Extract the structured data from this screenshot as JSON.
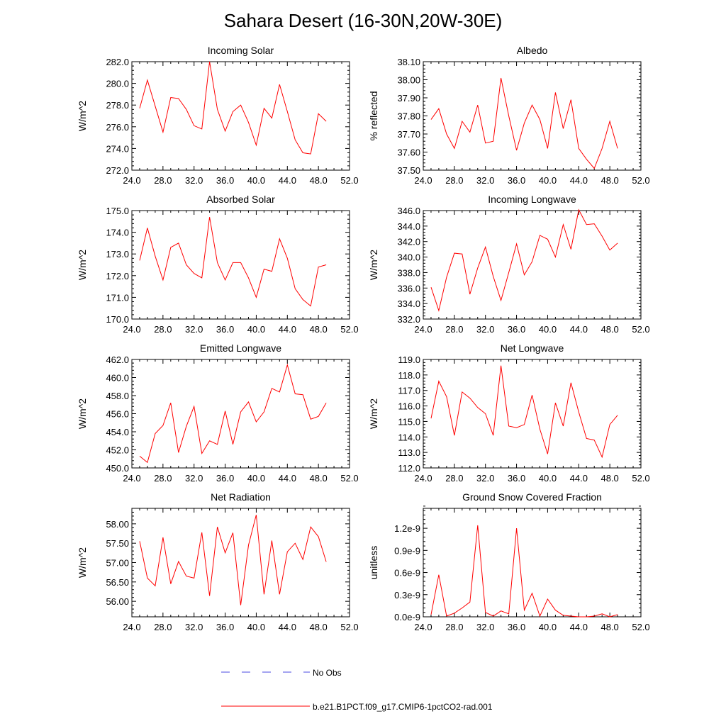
{
  "title": "Sahara Desert (16-30N,20W-30E)",
  "legend": {
    "obs_label": "No Obs",
    "model_label": "b.e21.B1PCT.f09_g17.CMIP6-1pctCO2-rad.001",
    "model_color": "#ff0000",
    "obs_color": "#4a4ae0"
  },
  "chart_data": [
    {
      "type": "line",
      "title": "Incoming Solar",
      "ylabel": "W/m^2",
      "xlim": [
        24,
        52
      ],
      "ylim": [
        272,
        282
      ],
      "xticks": [
        24,
        28,
        32,
        36,
        40,
        44,
        48,
        52
      ],
      "xtick_labels": [
        "24.0",
        "28.0",
        "32.0",
        "36.0",
        "40.0",
        "44.0",
        "48.0",
        "52.0"
      ],
      "yticks": [
        272,
        274,
        276,
        278,
        280,
        282
      ],
      "ytick_labels": [
        "272.0",
        "274.0",
        "276.0",
        "278.0",
        "280.0",
        "282.0"
      ],
      "yminor": 0.4,
      "x": [
        25,
        26,
        27,
        28,
        29,
        30,
        31,
        32,
        33,
        34,
        35,
        36,
        37,
        38,
        39,
        40,
        41,
        42,
        43,
        44,
        45,
        46,
        47,
        48,
        49
      ],
      "series": [
        {
          "name": "b.e21.B1PCT.f09_g17.CMIP6-1pctCO2-rad.001",
          "values": [
            277.7,
            280.3,
            277.9,
            275.5,
            278.7,
            278.6,
            277.6,
            276.1,
            275.8,
            282.0,
            277.6,
            275.6,
            277.4,
            278.0,
            276.4,
            274.3,
            277.7,
            276.8,
            279.9,
            277.4,
            274.8,
            273.6,
            273.5,
            277.2,
            276.5
          ]
        }
      ]
    },
    {
      "type": "line",
      "title": "Albedo",
      "ylabel": "% reflected",
      "xlim": [
        24,
        52
      ],
      "ylim": [
        37.5,
        38.1
      ],
      "xticks": [
        24,
        28,
        32,
        36,
        40,
        44,
        48,
        52
      ],
      "xtick_labels": [
        "24.0",
        "28.0",
        "32.0",
        "36.0",
        "40.0",
        "44.0",
        "48.0",
        "52.0"
      ],
      "yticks": [
        37.5,
        37.6,
        37.7,
        37.8,
        37.9,
        38.0,
        38.1
      ],
      "ytick_labels": [
        "37.50",
        "37.60",
        "37.70",
        "37.80",
        "37.90",
        "38.00",
        "38.10"
      ],
      "yminor": 0.02,
      "x": [
        25,
        26,
        27,
        28,
        29,
        30,
        31,
        32,
        33,
        34,
        35,
        36,
        37,
        38,
        39,
        40,
        41,
        42,
        43,
        44,
        45,
        46,
        47,
        48,
        49
      ],
      "series": [
        {
          "name": "b.e21.B1PCT.f09_g17.CMIP6-1pctCO2-rad.001",
          "values": [
            37.78,
            37.84,
            37.7,
            37.62,
            37.77,
            37.71,
            37.86,
            37.65,
            37.66,
            38.01,
            37.8,
            37.61,
            37.76,
            37.86,
            37.78,
            37.62,
            37.93,
            37.73,
            37.89,
            37.62,
            37.56,
            37.51,
            37.62,
            37.77,
            37.62
          ]
        }
      ]
    },
    {
      "type": "line",
      "title": "Absorbed Solar",
      "ylabel": "W/m^2",
      "xlim": [
        24,
        52
      ],
      "ylim": [
        170,
        175
      ],
      "xticks": [
        24,
        28,
        32,
        36,
        40,
        44,
        48,
        52
      ],
      "xtick_labels": [
        "24.0",
        "28.0",
        "32.0",
        "36.0",
        "40.0",
        "44.0",
        "48.0",
        "52.0"
      ],
      "yticks": [
        170,
        171,
        172,
        173,
        174,
        175
      ],
      "ytick_labels": [
        "170.0",
        "171.0",
        "172.0",
        "173.0",
        "174.0",
        "175.0"
      ],
      "yminor": 0.2,
      "x": [
        25,
        26,
        27,
        28,
        29,
        30,
        31,
        32,
        33,
        34,
        35,
        36,
        37,
        38,
        39,
        40,
        41,
        42,
        43,
        44,
        45,
        46,
        47,
        48,
        49
      ],
      "series": [
        {
          "name": "b.e21.B1PCT.f09_g17.CMIP6-1pctCO2-rad.001",
          "values": [
            172.7,
            174.2,
            172.9,
            171.8,
            173.3,
            173.5,
            172.5,
            172.1,
            171.9,
            174.7,
            172.6,
            171.8,
            172.6,
            172.6,
            171.9,
            171.0,
            172.3,
            172.2,
            173.7,
            172.8,
            171.4,
            170.9,
            170.6,
            172.4,
            172.5
          ]
        }
      ]
    },
    {
      "type": "line",
      "title": "Incoming Longwave",
      "ylabel": "W/m^2",
      "xlim": [
        24,
        52
      ],
      "ylim": [
        332,
        346
      ],
      "xticks": [
        24,
        28,
        32,
        36,
        40,
        44,
        48,
        52
      ],
      "xtick_labels": [
        "24.0",
        "28.0",
        "32.0",
        "36.0",
        "40.0",
        "44.0",
        "48.0",
        "52.0"
      ],
      "yticks": [
        332,
        334,
        336,
        338,
        340,
        342,
        344,
        346
      ],
      "ytick_labels": [
        "332.0",
        "334.0",
        "336.0",
        "338.0",
        "340.0",
        "342.0",
        "344.0",
        "346.0"
      ],
      "yminor": 0.4,
      "x": [
        25,
        26,
        27,
        28,
        29,
        30,
        31,
        32,
        33,
        34,
        35,
        36,
        37,
        38,
        39,
        40,
        41,
        42,
        43,
        44,
        45,
        46,
        47,
        48,
        49
      ],
      "series": [
        {
          "name": "b.e21.B1PCT.f09_g17.CMIP6-1pctCO2-rad.001",
          "values": [
            336.1,
            333.1,
            337.4,
            340.5,
            340.4,
            335.2,
            338.6,
            341.3,
            337.5,
            334.4,
            338.0,
            341.7,
            337.7,
            339.4,
            342.8,
            342.3,
            340.0,
            344.2,
            341.0,
            346.1,
            344.2,
            344.3,
            342.7,
            340.9,
            341.8
          ]
        }
      ]
    },
    {
      "type": "line",
      "title": "Emitted Longwave",
      "ylabel": "W/m^2",
      "xlim": [
        24,
        52
      ],
      "ylim": [
        450,
        462
      ],
      "xticks": [
        24,
        28,
        32,
        36,
        40,
        44,
        48,
        52
      ],
      "xtick_labels": [
        "24.0",
        "28.0",
        "32.0",
        "36.0",
        "40.0",
        "44.0",
        "48.0",
        "52.0"
      ],
      "yticks": [
        450,
        452,
        454,
        456,
        458,
        460,
        462
      ],
      "ytick_labels": [
        "450.0",
        "452.0",
        "454.0",
        "456.0",
        "458.0",
        "460.0",
        "462.0"
      ],
      "yminor": 0.4,
      "x": [
        25,
        26,
        27,
        28,
        29,
        30,
        31,
        32,
        33,
        34,
        35,
        36,
        37,
        38,
        39,
        40,
        41,
        42,
        43,
        44,
        45,
        46,
        47,
        48,
        49
      ],
      "series": [
        {
          "name": "b.e21.B1PCT.f09_g17.CMIP6-1pctCO2-rad.001",
          "values": [
            451.3,
            450.6,
            453.8,
            454.7,
            457.2,
            451.7,
            454.6,
            456.8,
            451.6,
            453.0,
            452.6,
            456.3,
            452.6,
            456.2,
            457.3,
            455.1,
            456.2,
            458.8,
            458.4,
            461.4,
            458.2,
            458.1,
            455.4,
            455.7,
            457.2
          ]
        }
      ]
    },
    {
      "type": "line",
      "title": "Net Longwave",
      "ylabel": "W/m^2",
      "xlim": [
        24,
        52
      ],
      "ylim": [
        112,
        119
      ],
      "xticks": [
        24,
        28,
        32,
        36,
        40,
        44,
        48,
        52
      ],
      "xtick_labels": [
        "24.0",
        "28.0",
        "32.0",
        "36.0",
        "40.0",
        "44.0",
        "48.0",
        "52.0"
      ],
      "yticks": [
        112,
        113,
        114,
        115,
        116,
        117,
        118,
        119
      ],
      "ytick_labels": [
        "112.0",
        "113.0",
        "114.0",
        "115.0",
        "116.0",
        "117.0",
        "118.0",
        "119.0"
      ],
      "yminor": 0.2,
      "x": [
        25,
        26,
        27,
        28,
        29,
        30,
        31,
        32,
        33,
        34,
        35,
        36,
        37,
        38,
        39,
        40,
        41,
        42,
        43,
        44,
        45,
        46,
        47,
        48,
        49
      ],
      "series": [
        {
          "name": "b.e21.B1PCT.f09_g17.CMIP6-1pctCO2-rad.001",
          "values": [
            115.2,
            117.6,
            116.6,
            114.1,
            116.9,
            116.5,
            115.9,
            115.5,
            114.1,
            118.6,
            114.7,
            114.6,
            114.8,
            116.7,
            114.5,
            112.9,
            116.2,
            114.7,
            117.5,
            115.6,
            113.9,
            113.8,
            112.7,
            114.8,
            115.4
          ]
        }
      ]
    },
    {
      "type": "line",
      "title": "Net Radiation",
      "ylabel": "W/m^2",
      "xlim": [
        24,
        52
      ],
      "ylim": [
        55.6,
        58.4
      ],
      "xticks": [
        24,
        28,
        32,
        36,
        40,
        44,
        48,
        52
      ],
      "xtick_labels": [
        "24.0",
        "28.0",
        "32.0",
        "36.0",
        "40.0",
        "44.0",
        "48.0",
        "52.0"
      ],
      "yticks": [
        56,
        56.5,
        57,
        57.5,
        58
      ],
      "ytick_labels": [
        "56.00",
        "56.50",
        "57.00",
        "57.50",
        "58.00"
      ],
      "yminor": 0.1,
      "x": [
        25,
        26,
        27,
        28,
        29,
        30,
        31,
        32,
        33,
        34,
        35,
        36,
        37,
        38,
        39,
        40,
        41,
        42,
        43,
        44,
        45,
        46,
        47,
        48,
        49
      ],
      "series": [
        {
          "name": "b.e21.B1PCT.f09_g17.CMIP6-1pctCO2-rad.001",
          "values": [
            57.55,
            56.6,
            56.4,
            57.65,
            56.45,
            57.03,
            56.65,
            56.6,
            57.78,
            56.14,
            57.92,
            57.25,
            57.77,
            55.9,
            57.45,
            58.23,
            56.18,
            57.57,
            56.18,
            57.28,
            57.5,
            57.08,
            57.92,
            57.67,
            57.02
          ]
        }
      ]
    },
    {
      "type": "line",
      "title": "Ground Snow Covered Fraction",
      "ylabel": "unitless",
      "xlim": [
        24,
        52
      ],
      "ylim": [
        0,
        1.47e-09
      ],
      "xticks": [
        24,
        28,
        32,
        36,
        40,
        44,
        48,
        52
      ],
      "xtick_labels": [
        "24.0",
        "28.0",
        "32.0",
        "36.0",
        "40.0",
        "44.0",
        "48.0",
        "52.0"
      ],
      "yticks": [
        0,
        3e-10,
        6e-10,
        9e-10,
        1.2e-09
      ],
      "ytick_labels": [
        "0.0e-9",
        "0.3e-9",
        "0.6e-9",
        "0.9e-9",
        "1.2e-9"
      ],
      "yminor": 6e-11,
      "x": [
        25,
        26,
        27,
        28,
        29,
        30,
        31,
        32,
        33,
        34,
        35,
        36,
        37,
        38,
        39,
        40,
        41,
        42,
        43,
        44,
        45,
        46,
        47,
        48,
        49
      ],
      "series": [
        {
          "name": "b.e21.B1PCT.f09_g17.CMIP6-1pctCO2-rad.001",
          "values": [
            3e-11,
            5.7e-10,
            1e-11,
            5e-11,
            1.2e-10,
            2e-10,
            1.24e-09,
            6e-11,
            1e-11,
            8e-11,
            4e-11,
            1.2e-09,
            9e-11,
            3.2e-10,
            1e-11,
            2.4e-10,
            9e-11,
            2e-11,
            1e-11,
            0.0,
            0.0,
            1e-11,
            4e-11,
            0.0,
            3e-11
          ]
        }
      ]
    }
  ]
}
